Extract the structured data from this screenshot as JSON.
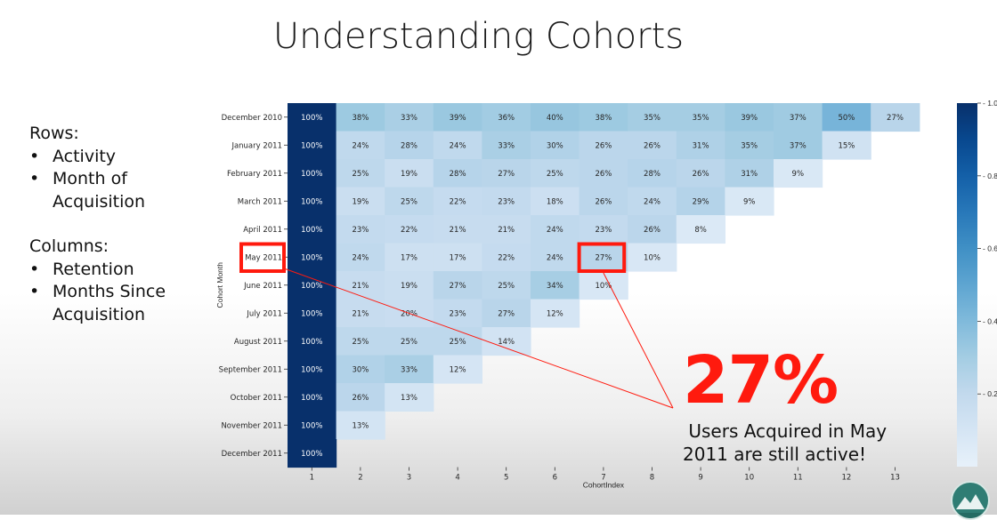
{
  "slide": {
    "title": "Understanding Cohorts"
  },
  "notes": {
    "rows_heading": "Rows:",
    "rows_items": [
      "Activity",
      "Month of",
      "Acquisition"
    ],
    "columns_heading": "Columns:",
    "columns_items": [
      "Retention",
      "Months Since",
      "Acquisition"
    ]
  },
  "callout": {
    "stat": "27%",
    "caption_line1": " Users Acquired in May",
    "caption_line2": "2011 are still active!",
    "highlight_color": "#ff1a0e",
    "highlight_row": "May 2011",
    "highlight_col": 7
  },
  "chart_data": {
    "type": "heatmap",
    "xlabel": "CohortIndex",
    "ylabel": "Cohort Month",
    "colormap": "Blues",
    "colorbar_ticks": [
      "0.2",
      "0.4",
      "0.6",
      "0.8",
      "1.0"
    ],
    "colorbar_range": [
      0.0,
      1.0
    ],
    "columns": [
      1,
      2,
      3,
      4,
      5,
      6,
      7,
      8,
      9,
      10,
      11,
      12,
      13
    ],
    "rows": [
      "December 2010",
      "January 2011",
      "February 2011",
      "March 2011",
      "April 2011",
      "May 2011",
      "June 2011",
      "July 2011",
      "August 2011",
      "September 2011",
      "October 2011",
      "November 2011",
      "December 2011"
    ],
    "values": [
      [
        100,
        38,
        33,
        39,
        36,
        40,
        38,
        35,
        35,
        39,
        37,
        50,
        27
      ],
      [
        100,
        24,
        28,
        24,
        33,
        30,
        26,
        26,
        31,
        35,
        37,
        15
      ],
      [
        100,
        25,
        19,
        28,
        27,
        25,
        26,
        28,
        26,
        31,
        9
      ],
      [
        100,
        19,
        25,
        22,
        23,
        18,
        26,
        24,
        29,
        9
      ],
      [
        100,
        23,
        22,
        21,
        21,
        24,
        23,
        26,
        8
      ],
      [
        100,
        24,
        17,
        17,
        22,
        24,
        27,
        10
      ],
      [
        100,
        21,
        19,
        27,
        25,
        34,
        10
      ],
      [
        100,
        21,
        20,
        23,
        27,
        12
      ],
      [
        100,
        25,
        25,
        25,
        14
      ],
      [
        100,
        30,
        33,
        12
      ],
      [
        100,
        26,
        13
      ],
      [
        100,
        13
      ],
      [
        100
      ]
    ],
    "value_suffix": "%"
  }
}
